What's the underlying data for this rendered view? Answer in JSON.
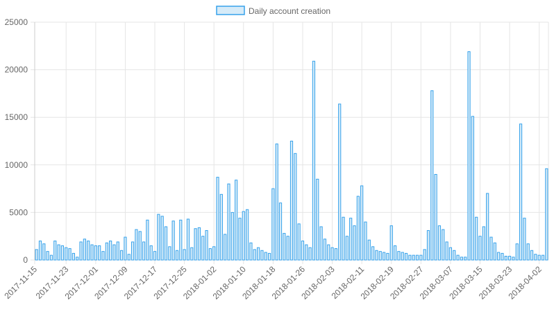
{
  "legend": {
    "label": "Daily account creation"
  },
  "colors": {
    "bar_fill": "#d6ebf8",
    "bar_stroke": "#36a2eb",
    "grid": "#e5e5e5",
    "text": "#666666"
  },
  "chart_data": {
    "type": "bar",
    "title": "",
    "xlabel": "",
    "ylabel": "",
    "ylim": [
      0,
      25000
    ],
    "y_ticks": [
      "0",
      "5000",
      "10000",
      "15000",
      "20000",
      "25000"
    ],
    "grid": true,
    "legend_position": "top-center",
    "x_tick_labels": [
      "2017-11-15",
      "2017-11-23",
      "2017-12-01",
      "2017-12-09",
      "2017-12-17",
      "2017-12-25",
      "2018-01-02",
      "2018-01-10",
      "2018-01-18",
      "2018-01-26",
      "2018-02-03",
      "2018-02-11",
      "2018-02-19",
      "2018-02-27",
      "2018-03-07",
      "2018-03-15",
      "2018-03-23",
      "2018-04-02"
    ],
    "series": [
      {
        "name": "Daily account creation",
        "values": [
          1100,
          2000,
          1700,
          900,
          500,
          2000,
          1600,
          1500,
          1300,
          1200,
          700,
          300,
          1900,
          2200,
          2000,
          1600,
          1500,
          1500,
          900,
          1800,
          2000,
          1600,
          1900,
          1000,
          2400,
          600,
          1900,
          3200,
          3000,
          1900,
          4200,
          1500,
          900,
          4800,
          4600,
          3500,
          1400,
          4100,
          1000,
          4200,
          1100,
          4300,
          1300,
          3300,
          3400,
          2500,
          3100,
          1200,
          1400,
          8700,
          6900,
          2700,
          8000,
          5000,
          8400,
          4400,
          5100,
          5300,
          1800,
          1100,
          1300,
          1000,
          800,
          700,
          7500,
          12200,
          6000,
          2800,
          2500,
          12500,
          11200,
          3800,
          2000,
          1600,
          1300,
          20900,
          8500,
          3500,
          2200,
          1600,
          1300,
          1200,
          16400,
          4500,
          2500,
          4400,
          3600,
          6700,
          7800,
          4000,
          2100,
          1400,
          1000,
          900,
          800,
          700,
          3600,
          1500,
          900,
          800,
          700,
          500,
          500,
          500,
          500,
          1100,
          3100,
          17800,
          9000,
          3600,
          3200,
          1900,
          1300,
          1000,
          500,
          300,
          300,
          21900,
          15100,
          4500,
          2500,
          3500,
          7000,
          2400,
          1800,
          800,
          700,
          400,
          400,
          300,
          1700,
          14300,
          4400,
          1700,
          1000,
          600,
          500,
          500,
          9600
        ]
      }
    ]
  }
}
